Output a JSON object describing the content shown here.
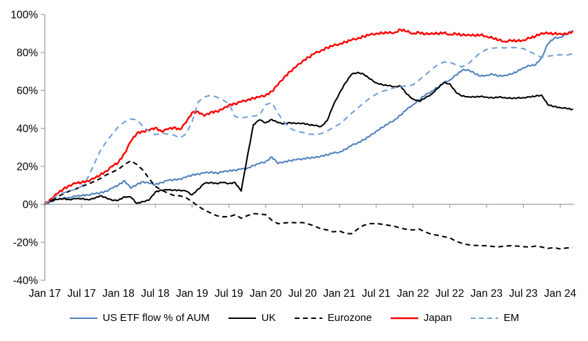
{
  "chart_data": {
    "type": "line",
    "title": "",
    "xlabel": "",
    "ylabel": "",
    "y_tick_suffix": "%",
    "y_ticks": [
      100,
      80,
      60,
      40,
      20,
      0,
      -20,
      -40
    ],
    "ylim": [
      -40,
      100
    ],
    "grid": "zero-baseline-only",
    "legend_position": "bottom",
    "x_tick_labels": [
      "Jan 17",
      "Jul 17",
      "Jan 18",
      "Jul 18",
      "Jan 19",
      "Jul 19",
      "Jan 20",
      "Jul 20",
      "Jan 21",
      "Jul 21",
      "Jan 22",
      "Jul 22",
      "Jan 23",
      "Jul 23",
      "Jan 24"
    ],
    "x_unit": "monthly from Jan 2017 to Mar 2024",
    "axis_color": "#9d9d9d",
    "text_color": "#000000",
    "series": [
      {
        "id": "us-etf-flow",
        "name": "US ETF flow % of AUM",
        "color": "#4f81bd",
        "dash": "solid",
        "values": [
          0,
          1.5,
          2.5,
          3.2,
          3.6,
          4.2,
          4.7,
          5,
          5.5,
          6,
          7,
          8.5,
          10.2,
          12.5,
          8.5,
          10.5,
          12,
          11,
          10.5,
          11.5,
          12.5,
          13,
          13.3,
          14.2,
          15.5,
          16,
          16.5,
          17,
          16.5,
          17,
          17.8,
          18,
          18.5,
          19,
          20.5,
          21.5,
          22.5,
          25,
          21.5,
          22.5,
          23,
          23.5,
          24,
          24.5,
          24.5,
          25.5,
          26,
          27,
          27.5,
          29,
          31,
          32.5,
          34,
          36,
          38.5,
          40.5,
          42.5,
          44.5,
          47,
          50,
          52.5,
          55,
          57.5,
          59.5,
          61.5,
          64,
          65.5,
          68,
          70.5,
          71,
          69,
          67.5,
          68,
          68.5,
          67.5,
          68,
          68.5,
          70,
          72,
          73,
          73.5,
          77.5,
          84.5,
          87.5,
          88,
          89.5,
          91.5
        ]
      },
      {
        "id": "uk",
        "name": "UK",
        "color": "#000000",
        "dash": "solid",
        "values": [
          0,
          2,
          2.5,
          3,
          2.5,
          3,
          3,
          2.5,
          3,
          4.5,
          3.5,
          2,
          2.2,
          4,
          3.8,
          0.5,
          1.5,
          2.2,
          6.5,
          7.5,
          7.6,
          7.5,
          7.4,
          7,
          5,
          8,
          11,
          11.5,
          11,
          11.5,
          11,
          11.5,
          7,
          25,
          42,
          44.5,
          43,
          44.7,
          43,
          42.5,
          43,
          42.5,
          42.8,
          42,
          41.5,
          41,
          44,
          52,
          58.5,
          64,
          68.5,
          69.5,
          68.5,
          66,
          64,
          63,
          62.5,
          62,
          62.2,
          58,
          55.5,
          54.2,
          56,
          58,
          61,
          64,
          63.5,
          59,
          57,
          56.7,
          56.5,
          56.8,
          56.5,
          56,
          56.5,
          56.2,
          55.8,
          56,
          56.2,
          56.5,
          57,
          57.5,
          52.4,
          51.5,
          51,
          50.5,
          50
        ]
      },
      {
        "id": "eurozone",
        "name": "Eurozone",
        "color": "#000000",
        "dash": "dashed",
        "values": [
          0,
          2,
          4,
          5.5,
          7,
          8,
          9.5,
          10.5,
          12,
          13.5,
          15.5,
          17,
          18.5,
          21,
          22.9,
          21,
          18,
          13.5,
          9.5,
          7.5,
          6,
          4.7,
          4.5,
          3.5,
          1.5,
          -1,
          -3,
          -4.5,
          -6,
          -6.5,
          -6.5,
          -5.5,
          -7.3,
          -6,
          -4.9,
          -5.1,
          -5.5,
          -8.4,
          -10.2,
          -9.8,
          -9.6,
          -9.7,
          -9.6,
          -10.4,
          -11.5,
          -12.9,
          -13.5,
          -14.5,
          -14,
          -15.3,
          -15.5,
          -13,
          -11,
          -10.2,
          -10.1,
          -10.5,
          -11,
          -11.6,
          -12.5,
          -13.2,
          -13.5,
          -13,
          -14.5,
          -15.8,
          -16.3,
          -17,
          -17.6,
          -19.5,
          -20.5,
          -21.3,
          -21.6,
          -21.8,
          -21.8,
          -22.2,
          -22.4,
          -22,
          -21.8,
          -22,
          -22.3,
          -22.5,
          -22,
          -22.5,
          -23.2,
          -22.8,
          -23.5,
          -23,
          -22.8
        ]
      },
      {
        "id": "japan",
        "name": "Japan",
        "color": "#ff0000",
        "dash": "solid",
        "values": [
          0,
          3,
          5.5,
          8,
          10,
          11,
          11.6,
          12.4,
          13.5,
          15.5,
          17.5,
          20,
          22.2,
          27,
          33,
          37.5,
          38.5,
          39,
          40.4,
          38.5,
          39.5,
          40.5,
          39.5,
          43,
          48.4,
          48.8,
          46.5,
          48.5,
          49,
          50,
          52.4,
          53,
          54,
          55,
          56,
          56.5,
          57.5,
          59.5,
          63,
          67,
          70,
          72.5,
          75.5,
          77.5,
          79.5,
          81,
          82.5,
          83.5,
          84.5,
          85.5,
          86.5,
          87.5,
          88.4,
          89.3,
          90,
          90.2,
          90.3,
          90.5,
          92,
          91,
          90,
          90.5,
          89.5,
          90.2,
          89.8,
          90.3,
          89.5,
          89.8,
          89,
          89.5,
          88.8,
          89.2,
          88.5,
          87.5,
          86.5,
          85.8,
          86.2,
          86,
          86.5,
          87.5,
          88.5,
          90.3,
          90,
          89.8,
          90,
          89.5,
          91
        ]
      },
      {
        "id": "em",
        "name": "EM",
        "color": "#6f9fd8",
        "dash": "dashed",
        "values": [
          0,
          2.5,
          4.5,
          6,
          7,
          8,
          9.5,
          14,
          21,
          28,
          33,
          37,
          41,
          43.5,
          45,
          44.5,
          41,
          38.5,
          36.7,
          37.5,
          37,
          36.5,
          35,
          37,
          43.5,
          54,
          56.5,
          57.5,
          56.5,
          55,
          53,
          46.2,
          45.5,
          46,
          46.5,
          47,
          52.5,
          53.5,
          48,
          43.3,
          40,
          38.5,
          37.9,
          37,
          36.8,
          37.2,
          38.5,
          40.5,
          42.2,
          45,
          48,
          50.7,
          53.5,
          56,
          58,
          59.5,
          60.4,
          61.5,
          62,
          62.5,
          62.9,
          65.5,
          68,
          71,
          73.5,
          74.9,
          74.9,
          73.5,
          72.4,
          74,
          77,
          80,
          81.6,
          82.3,
          82.5,
          82.4,
          82.6,
          82.5,
          82,
          80.5,
          79,
          77.3,
          78,
          78.5,
          78.8,
          78.5,
          79.3
        ]
      }
    ]
  }
}
